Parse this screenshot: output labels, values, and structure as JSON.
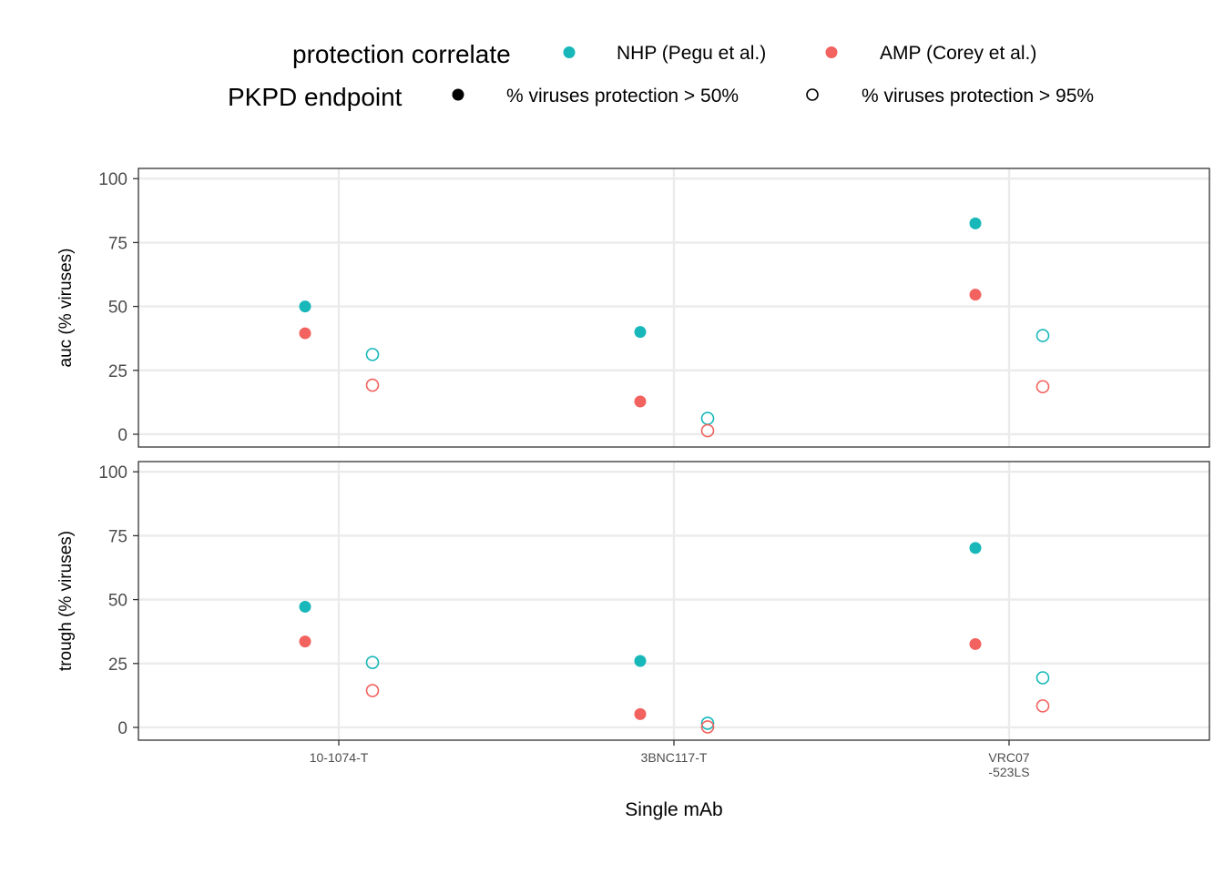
{
  "colors": {
    "nhp": "#18b7b9",
    "amp": "#f2625e",
    "neutral": "#000000"
  },
  "legend": {
    "color_title": "protection correlate",
    "color_items": [
      {
        "label": "NHP (Pegu et al.)",
        "color": "#18b7b9"
      },
      {
        "label": "AMP (Corey et al.)",
        "color": "#f2625e"
      }
    ],
    "shape_title": "PKPD endpoint",
    "shape_items": [
      {
        "label": "% viruses protection > 50%",
        "shape": "filled-circle"
      },
      {
        "label": "% viruses protection > 95%",
        "shape": "open-circle"
      }
    ]
  },
  "chart_data": {
    "type": "scatter",
    "xlabel": "Single mAb",
    "categories": [
      "10-1074-T",
      "3BNC117-T",
      "VRC07\n-523LS"
    ],
    "ylim": [
      -5,
      104
    ],
    "yticks": [
      0,
      25,
      50,
      75,
      100
    ],
    "grid": true,
    "legend_position": "top",
    "panels": [
      {
        "ylabel": "auc (% viruses)",
        "series": [
          {
            "correlate": "NHP (Pegu et al.)",
            "endpoint": "% viruses protection > 50%",
            "values": [
              50,
              40,
              82.5
            ]
          },
          {
            "correlate": "AMP (Corey et al.)",
            "endpoint": "% viruses protection > 50%",
            "values": [
              39.5,
              12.8,
              54.6
            ]
          },
          {
            "correlate": "NHP (Pegu et al.)",
            "endpoint": "% viruses protection > 95%",
            "values": [
              31.2,
              6.2,
              38.6
            ]
          },
          {
            "correlate": "AMP (Corey et al.)",
            "endpoint": "% viruses protection > 95%",
            "values": [
              19.2,
              1.4,
              18.6
            ]
          }
        ]
      },
      {
        "ylabel": "trough (% viruses)",
        "series": [
          {
            "correlate": "NHP (Pegu et al.)",
            "endpoint": "% viruses protection > 50%",
            "values": [
              47.2,
              26,
              70.2
            ]
          },
          {
            "correlate": "AMP (Corey et al.)",
            "endpoint": "% viruses protection > 50%",
            "values": [
              33.6,
              5.2,
              32.6
            ]
          },
          {
            "correlate": "NHP (Pegu et al.)",
            "endpoint": "% viruses protection > 95%",
            "values": [
              25.4,
              1.6,
              19.4
            ]
          },
          {
            "correlate": "AMP (Corey et al.)",
            "endpoint": "% viruses protection > 95%",
            "values": [
              14.4,
              0.2,
              8.4
            ]
          }
        ]
      }
    ]
  }
}
